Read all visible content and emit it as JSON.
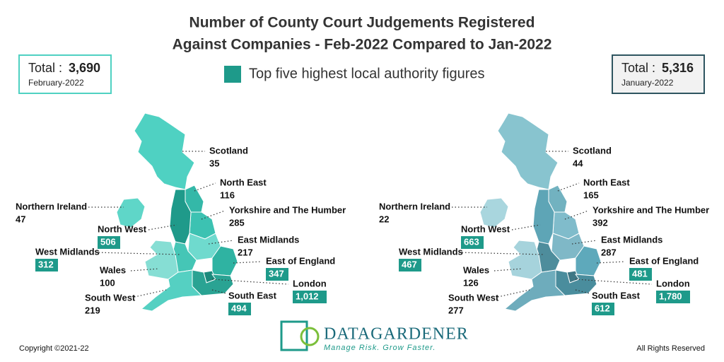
{
  "title": "Number of County Court Judgements Registered Against Companies - Feb-2022 Compared to Jan-2022",
  "legend": "Top five highest local authority figures",
  "maps": [
    {
      "total_label": "Total :",
      "total": "3,690",
      "period": "February-2022",
      "regions": [
        {
          "name": "Scotland",
          "value": "35",
          "highlighted": false
        },
        {
          "name": "North East",
          "value": "116",
          "highlighted": false
        },
        {
          "name": "Northern Ireland",
          "value": "47",
          "highlighted": false
        },
        {
          "name": "Yorkshire and The Humber",
          "value": "285",
          "highlighted": false
        },
        {
          "name": "North West",
          "value": "506",
          "highlighted": true
        },
        {
          "name": "West Midlands",
          "value": "312",
          "highlighted": true
        },
        {
          "name": "East Midlands",
          "value": "217",
          "highlighted": false
        },
        {
          "name": "East of England",
          "value": "347",
          "highlighted": true
        },
        {
          "name": "Wales",
          "value": "100",
          "highlighted": false
        },
        {
          "name": "London",
          "value": "1,012",
          "highlighted": true
        },
        {
          "name": "South West",
          "value": "219",
          "highlighted": false
        },
        {
          "name": "South East",
          "value": "494",
          "highlighted": true
        }
      ]
    },
    {
      "total_label": "Total :",
      "total": "5,316",
      "period": "January-2022",
      "regions": [
        {
          "name": "Scotland",
          "value": "44",
          "highlighted": false
        },
        {
          "name": "North East",
          "value": "165",
          "highlighted": false
        },
        {
          "name": "Northern Ireland",
          "value": "22",
          "highlighted": false
        },
        {
          "name": "Yorkshire and The Humber",
          "value": "392",
          "highlighted": false
        },
        {
          "name": "North West",
          "value": "663",
          "highlighted": true
        },
        {
          "name": "West Midlands",
          "value": "467",
          "highlighted": true
        },
        {
          "name": "East Midlands",
          "value": "287",
          "highlighted": false
        },
        {
          "name": "East of England",
          "value": "481",
          "highlighted": true
        },
        {
          "name": "Wales",
          "value": "126",
          "highlighted": false
        },
        {
          "name": "London",
          "value": "1,780",
          "highlighted": true
        },
        {
          "name": "South West",
          "value": "277",
          "highlighted": false
        },
        {
          "name": "South East",
          "value": "612",
          "highlighted": true
        }
      ]
    }
  ],
  "logo": {
    "name": "DataGardener",
    "tagline": "Manage Risk. Grow Faster."
  },
  "footer": {
    "left": "Copyright ©2021-22",
    "right": "All Rights Reserved"
  }
}
